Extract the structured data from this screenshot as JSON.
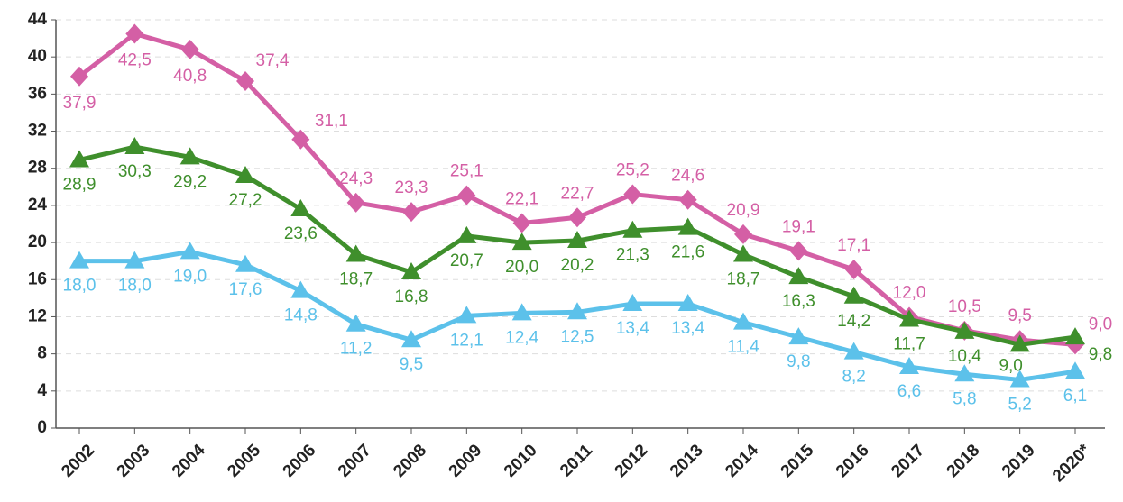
{
  "chart_data": {
    "type": "line",
    "categories": [
      "2002",
      "2003",
      "2004",
      "2005",
      "2006",
      "2007",
      "2008",
      "2009",
      "2010",
      "2011",
      "2012",
      "2013",
      "2014",
      "2015",
      "2016",
      "2017",
      "2018",
      "2019",
      "2020*"
    ],
    "series": [
      {
        "color": "#d45fa5",
        "marker": "diamond",
        "values": [
          37.9,
          42.5,
          40.8,
          37.4,
          31.1,
          24.3,
          23.3,
          25.1,
          22.1,
          22.7,
          25.2,
          24.6,
          20.9,
          19.1,
          17.1,
          12.0,
          10.5,
          9.5,
          9.0
        ],
        "value_labels": [
          "37,9",
          "42,5",
          "40,8",
          "37,4",
          "31,1",
          "24,3",
          "23,3",
          "25,1",
          "22,1",
          "22,7",
          "25,2",
          "24,6",
          "20,9",
          "19,1",
          "17,1",
          "12,0",
          "10,5",
          "9,5",
          "9,0"
        ]
      },
      {
        "color": "#3f8f2c",
        "marker": "triangle",
        "values": [
          28.9,
          30.3,
          29.2,
          27.2,
          23.6,
          18.7,
          16.8,
          20.7,
          20.0,
          20.2,
          21.3,
          21.6,
          18.7,
          16.3,
          14.2,
          11.7,
          10.4,
          9.0,
          9.8
        ],
        "value_labels": [
          "28,9",
          "30,3",
          "29,2",
          "27,2",
          "23,6",
          "18,7",
          "16,8",
          "20,7",
          "20,0",
          "20,2",
          "21,3",
          "21,6",
          "18,7",
          "16,3",
          "14,2",
          "11,7",
          "10,4",
          "9,0",
          "9,8"
        ]
      },
      {
        "color": "#5cc1ea",
        "marker": "triangle",
        "values": [
          18.0,
          18.0,
          19.0,
          17.6,
          14.8,
          11.2,
          9.5,
          12.1,
          12.4,
          12.5,
          13.4,
          13.4,
          11.4,
          9.8,
          8.2,
          6.6,
          5.8,
          5.2,
          6.1
        ],
        "value_labels": [
          "18,0",
          "18,0",
          "19,0",
          "17,6",
          "14,8",
          "11,2",
          "9,5",
          "12,1",
          "12,4",
          "12,5",
          "13,4",
          "13,4",
          "11,4",
          "9,8",
          "8,2",
          "6,6",
          "5,8",
          "5,2",
          "6,1"
        ]
      }
    ],
    "ylim": [
      0,
      44
    ],
    "yticks": [
      0,
      4,
      8,
      12,
      16,
      20,
      24,
      28,
      32,
      36,
      40,
      44
    ],
    "grid": true
  }
}
